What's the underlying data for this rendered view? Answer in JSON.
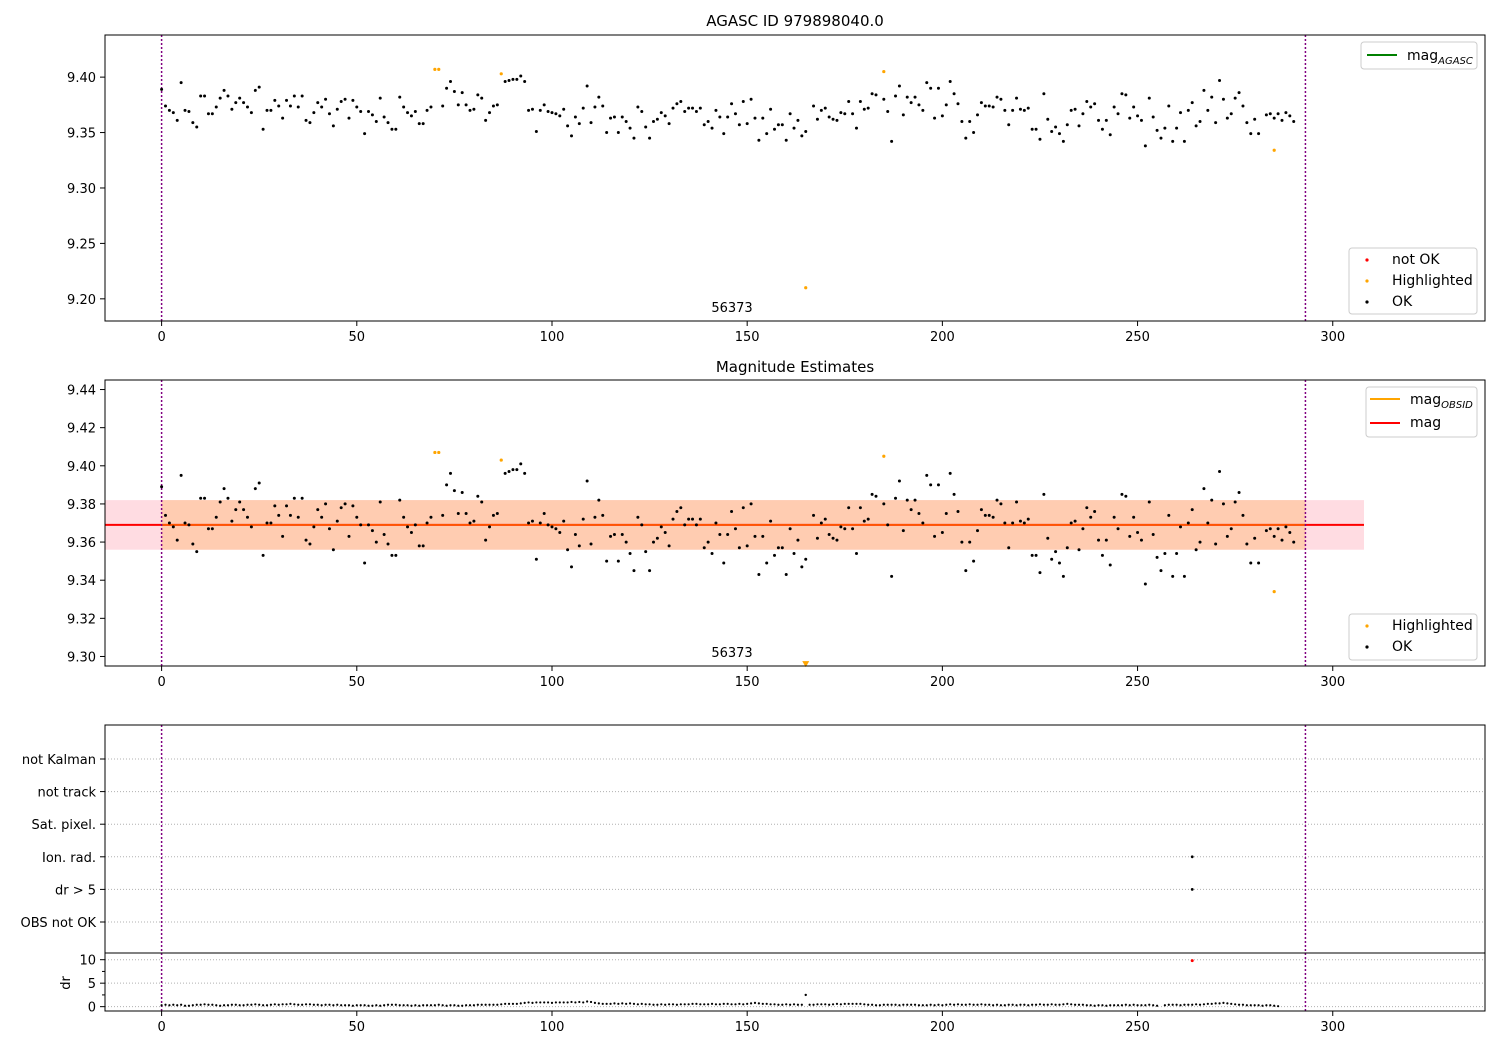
{
  "chart_data": [
    {
      "type": "scatter",
      "title": "AGASC ID 979898040.0",
      "xlim": [
        -14.5,
        339
      ],
      "ylim": [
        9.18,
        9.438
      ],
      "xticks": [
        "0",
        "50",
        "100",
        "150",
        "200",
        "250",
        "300"
      ],
      "yticks": [
        "9.20",
        "9.25",
        "9.30",
        "9.35",
        "9.40"
      ],
      "obsid_marker": {
        "x": 0,
        "label": "56373"
      },
      "vlines": [
        0,
        293
      ],
      "series": [
        {
          "name": "not OK",
          "color": "#ff0000",
          "points": []
        },
        {
          "name": "Highlighted",
          "color": "#ffa500",
          "points": [
            [
              70,
              9.407
            ],
            [
              71,
              9.407
            ],
            [
              87,
              9.403
            ],
            [
              165,
              9.21
            ],
            [
              185,
              9.405
            ],
            [
              285,
              9.334
            ]
          ]
        },
        {
          "name": "OK",
          "color": "#000000",
          "y": [
            9.389,
            9.374,
            9.37,
            9.368,
            9.361,
            9.395,
            9.37,
            9.369,
            9.359,
            9.355,
            9.383,
            9.383,
            9.367,
            9.367,
            9.373,
            9.381,
            9.388,
            9.383,
            9.371,
            9.377,
            9.381,
            9.377,
            9.373,
            9.368,
            9.388,
            9.391,
            9.353,
            9.37,
            9.37,
            9.379,
            9.374,
            9.363,
            9.379,
            9.374,
            9.383,
            9.373,
            9.383,
            9.361,
            9.359,
            9.368,
            9.377,
            9.373,
            9.38,
            9.367,
            9.356,
            9.371,
            9.378,
            9.38,
            9.363,
            9.379,
            9.373,
            9.369,
            9.349,
            9.369,
            9.366,
            9.36,
            9.381,
            9.364,
            9.359,
            9.353,
            9.353,
            9.382,
            9.373,
            9.368,
            9.365,
            9.369,
            9.358,
            9.358,
            9.37,
            9.373,
            null,
            null,
            9.374,
            9.39,
            9.396,
            9.387,
            9.375,
            9.386,
            9.375,
            9.37,
            9.371,
            9.384,
            9.381,
            9.361,
            9.368,
            9.374,
            9.375,
            null,
            9.396,
            9.397,
            9.398,
            9.398,
            9.401,
            9.396,
            9.37,
            9.371,
            9.351,
            9.37,
            9.375,
            9.369,
            9.368,
            9.367,
            9.365,
            9.371,
            9.356,
            9.347,
            9.364,
            9.358,
            9.372,
            9.392,
            9.359,
            9.373,
            9.382,
            9.374,
            9.35,
            9.363,
            9.364,
            9.35,
            9.364,
            9.36,
            9.354,
            9.345,
            9.373,
            9.369,
            9.355,
            9.345,
            9.36,
            9.362,
            9.368,
            9.365,
            9.358,
            9.372,
            9.376,
            9.378,
            9.369,
            9.372,
            9.372,
            9.369,
            9.372,
            9.357,
            9.36,
            9.354,
            9.37,
            9.364,
            9.349,
            9.364,
            9.376,
            9.367,
            9.357,
            9.378,
            9.358,
            9.38,
            9.363,
            9.343,
            9.363,
            9.349,
            9.371,
            9.353,
            9.357,
            9.357,
            9.343,
            9.367,
            9.354,
            9.361,
            9.347,
            9.351,
            null,
            9.374,
            9.362,
            9.37,
            9.372,
            9.364,
            9.362,
            9.361,
            9.368,
            9.367,
            9.378,
            9.367,
            9.354,
            9.378,
            9.371,
            9.372,
            9.385,
            9.384,
            null,
            9.38,
            9.369,
            9.342,
            9.383,
            9.392,
            9.366,
            9.382,
            9.377,
            9.382,
            9.375,
            9.37,
            9.395,
            9.39,
            9.363,
            9.39,
            9.365,
            9.375,
            9.396,
            9.385,
            9.376,
            9.36,
            9.345,
            9.36,
            9.35,
            9.366,
            9.377,
            9.374,
            9.374,
            9.373,
            9.382,
            9.38,
            9.37,
            9.357,
            9.37,
            9.381,
            9.371,
            9.37,
            9.372,
            9.353,
            9.353,
            9.344,
            9.385,
            9.362,
            9.351,
            9.355,
            9.349,
            9.342,
            9.357,
            9.37,
            9.371,
            9.356,
            9.367,
            9.378,
            9.373,
            9.376,
            9.361,
            9.353,
            9.361,
            9.348,
            9.373,
            9.367,
            9.385,
            9.384,
            9.363,
            9.373,
            9.365,
            9.361,
            9.338,
            9.381,
            9.364,
            9.352,
            9.345,
            9.354,
            9.374,
            9.342,
            9.354,
            9.368,
            9.342,
            9.37,
            9.377,
            9.356,
            9.36,
            9.388,
            9.37,
            9.382,
            9.359,
            9.397,
            9.38,
            9.363,
            9.367,
            9.381,
            9.386,
            9.374,
            9.359,
            9.349,
            9.362,
            9.349,
            null,
            9.366,
            9.367,
            9.363,
            9.367,
            9.361,
            9.368,
            9.365,
            9.36
          ]
        }
      ],
      "legends": [
        {
          "position": "top-right",
          "entries": [
            {
              "label": "mag",
              "sub": "AGASC",
              "color": "#008000",
              "kind": "line"
            }
          ]
        },
        {
          "position": "lower-right",
          "entries": [
            {
              "label": "not OK",
              "color": "#ff0000",
              "kind": "dot"
            },
            {
              "label": "Highlighted",
              "color": "#ffa500",
              "kind": "dot"
            },
            {
              "label": "OK",
              "color": "#000000",
              "kind": "dot"
            }
          ]
        }
      ]
    },
    {
      "type": "scatter",
      "title": "Magnitude Estimates",
      "xlim": [
        -14.5,
        339
      ],
      "ylim": [
        9.295,
        9.445
      ],
      "xticks": [
        "0",
        "50",
        "100",
        "150",
        "200",
        "250",
        "300"
      ],
      "yticks": [
        "9.30",
        "9.32",
        "9.34",
        "9.36",
        "9.38",
        "9.40",
        "9.42",
        "9.44"
      ],
      "obsid_marker": {
        "x": 0,
        "label": "56373"
      },
      "vlines": [
        0,
        293
      ],
      "mag": {
        "value": 9.369,
        "band_outer": [
          9.356,
          9.382
        ],
        "band_inner": [
          9.356,
          9.382
        ],
        "x_start": 0,
        "x_end": 308,
        "color": "#ff0000"
      },
      "mag_obsid": {
        "value": 9.369,
        "color": "#ffa500"
      },
      "offscale_marker": {
        "x": 165,
        "y": 9.296,
        "color": "#ffa500"
      },
      "series": [
        {
          "name": "Highlighted",
          "color": "#ffa500",
          "points": [
            [
              70,
              9.407
            ],
            [
              71,
              9.407
            ],
            [
              87,
              9.403
            ],
            [
              185,
              9.405
            ],
            [
              285,
              9.334
            ]
          ]
        },
        {
          "name": "OK",
          "color": "#000000",
          "y_from": 0
        }
      ],
      "legends": [
        {
          "position": "top-right",
          "entries": [
            {
              "label": "mag",
              "sub": "OBSID",
              "color": "#ffa500",
              "kind": "line"
            },
            {
              "label": "mag",
              "sub": "",
              "color": "#ff0000",
              "kind": "line"
            }
          ]
        },
        {
          "position": "lower-right",
          "entries": [
            {
              "label": "Highlighted",
              "color": "#ffa500",
              "kind": "dot"
            },
            {
              "label": "OK",
              "color": "#000000",
              "kind": "dot"
            }
          ]
        }
      ]
    },
    {
      "type": "scatter",
      "title": "",
      "flags": [
        "not Kalman",
        "not track",
        "Sat. pixel.",
        "Ion. rad.",
        "dr > 5",
        "OBS not OK"
      ],
      "flag_points": [
        {
          "flag": "Ion. rad.",
          "x": 264
        },
        {
          "flag": "dr > 5",
          "x": 264
        }
      ],
      "vlines": [
        0,
        293
      ]
    },
    {
      "type": "scatter",
      "title": "",
      "ylabel": "dr",
      "xlim": [
        -14.5,
        339
      ],
      "ylim": [
        -0.5,
        11
      ],
      "xticks": [
        "0",
        "50",
        "100",
        "150",
        "200",
        "250",
        "300"
      ],
      "yticks": [
        "0",
        "5",
        "10"
      ],
      "vlines": [
        0,
        293
      ],
      "highlight": [
        {
          "x": 165,
          "y": 2.5,
          "color": "#000000"
        }
      ],
      "not_ok": [
        {
          "x": 264,
          "y": 9.8,
          "color": "#ff0000"
        }
      ],
      "dr": [
        0.3,
        0.4,
        0.3,
        0.4,
        0.3,
        0.4,
        0.2,
        0.2,
        0.3,
        0.4,
        0.4,
        0.5,
        0.4,
        0.4,
        0.3,
        0.2,
        0.3,
        0.3,
        0.4,
        0.4,
        0.3,
        0.3,
        0.4,
        0.4,
        0.5,
        0.4,
        0.3,
        0.3,
        0.4,
        0.5,
        0.4,
        0.5,
        0.5,
        0.6,
        0.5,
        0.4,
        0.4,
        0.5,
        0.5,
        0.4,
        0.4,
        0.3,
        0.4,
        0.4,
        0.3,
        0.4,
        0.3,
        0.3,
        0.3,
        0.2,
        0.3,
        0.3,
        0.3,
        0.2,
        0.2,
        0.3,
        0.2,
        0.3,
        0.4,
        0.4,
        0.4,
        0.3,
        0.3,
        0.3,
        0.2,
        0.3,
        0.2,
        0.3,
        0.3,
        0.3,
        0.3,
        0.4,
        0.3,
        0.2,
        0.3,
        0.3,
        0.2,
        0.2,
        0.3,
        0.3,
        0.3,
        0.4,
        0.4,
        0.4,
        0.4,
        0.4,
        0.4,
        0.5,
        0.6,
        0.6,
        0.6,
        0.6,
        0.7,
        0.8,
        0.9,
        0.8,
        0.9,
        0.9,
        0.9,
        0.9,
        0.8,
        0.9,
        0.9,
        0.9,
        0.9,
        1.0,
        0.9,
        1.0,
        0.9,
        1.1,
        1.0,
        0.8,
        0.7,
        0.6,
        0.6,
        0.6,
        0.7,
        0.6,
        0.7,
        0.6,
        0.7,
        0.6,
        0.5,
        0.6,
        0.5,
        0.5,
        0.4,
        0.4,
        0.5,
        0.4,
        0.5,
        0.5,
        0.4,
        0.5,
        0.5,
        0.5,
        0.6,
        0.6,
        0.5,
        0.5,
        0.5,
        0.6,
        0.5,
        0.5,
        0.6,
        0.6,
        0.5,
        0.5,
        0.6,
        0.5,
        0.6,
        0.7,
        0.8,
        0.7,
        0.6,
        0.6,
        0.5,
        0.5,
        0.4,
        0.4,
        0.5,
        0.4,
        0.5,
        0.4,
        0.4,
        null,
        0.4,
        0.4,
        0.5,
        0.5,
        0.5,
        0.4,
        0.5,
        0.6,
        0.5,
        0.6,
        0.6,
        0.6,
        0.6,
        0.6,
        0.5,
        0.4,
        0.4,
        0.3,
        0.3,
        0.4,
        0.4,
        0.4,
        0.4,
        0.3,
        0.4,
        0.4,
        0.4,
        0.4,
        0.3,
        0.3,
        0.3,
        0.4,
        0.3,
        0.4,
        0.3,
        0.4,
        0.5,
        0.4,
        0.5,
        0.4,
        0.4,
        0.5,
        0.4,
        0.4,
        0.5,
        0.4,
        0.4,
        0.3,
        0.4,
        0.3,
        0.3,
        0.4,
        0.4,
        0.3,
        0.4,
        0.4,
        0.3,
        0.4,
        0.4,
        0.5,
        0.4,
        0.4,
        0.5,
        0.4,
        0.4,
        0.5,
        0.6,
        0.5,
        0.4,
        0.4,
        0.4,
        0.3,
        0.3,
        0.2,
        0.3,
        0.3,
        0.2,
        0.3,
        0.3,
        0.3,
        0.3,
        0.4,
        0.3,
        0.4,
        0.3,
        0.3,
        0.3,
        0.4,
        0.3,
        0.2,
        null,
        0.3,
        0.4,
        0.4,
        0.4,
        0.3,
        0.4,
        0.4,
        0.4,
        0.5,
        0.4,
        0.5,
        0.6,
        0.6,
        0.7,
        0.7,
        0.8,
        0.7,
        0.6,
        0.5,
        0.4,
        0.4,
        0.3,
        0.3,
        0.3,
        0.3,
        0.2,
        0.3,
        0.3,
        0.2,
        0.1
      ]
    }
  ]
}
